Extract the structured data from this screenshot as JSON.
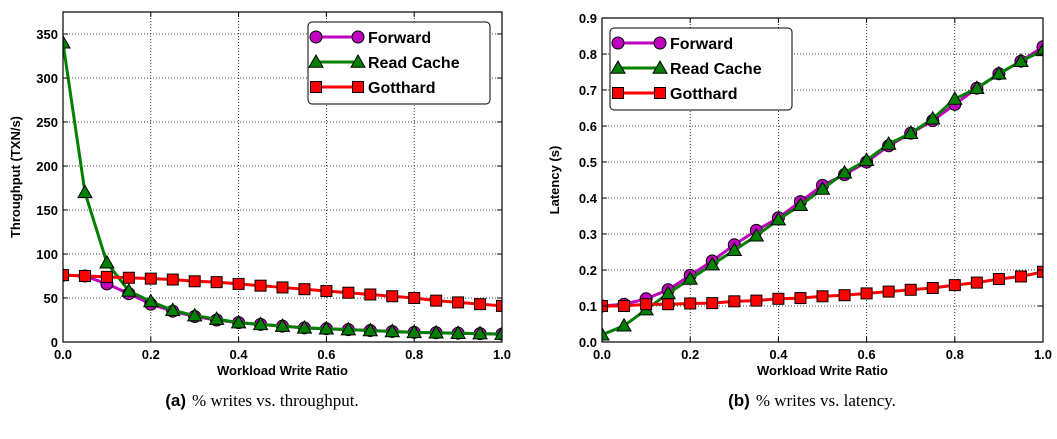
{
  "chart_data": [
    {
      "type": "line",
      "x": [
        0.0,
        0.05,
        0.1,
        0.15,
        0.2,
        0.25,
        0.3,
        0.35,
        0.4,
        0.45,
        0.5,
        0.55,
        0.6,
        0.65,
        0.7,
        0.75,
        0.8,
        0.85,
        0.9,
        0.95,
        1.0
      ],
      "series": [
        {
          "name": "Forward",
          "color": "#bf00bf",
          "marker": "circle",
          "values": [
            76,
            75,
            66,
            55,
            43,
            35,
            29,
            25,
            22,
            20,
            18,
            16,
            15,
            14,
            13,
            12,
            11,
            10.5,
            10,
            9.5,
            9
          ]
        },
        {
          "name": "Read Cache",
          "color": "#008000",
          "marker": "triangle",
          "values": [
            340,
            170,
            90,
            58,
            46,
            36,
            30,
            26,
            22,
            20,
            18,
            16,
            15,
            14,
            13,
            12,
            11,
            10.5,
            10,
            9.5,
            9
          ]
        },
        {
          "name": "Gotthard",
          "color": "#ff0000",
          "marker": "square",
          "values": [
            76,
            75,
            74,
            73,
            72,
            71,
            69,
            68,
            66,
            64,
            62,
            60,
            58,
            56,
            54,
            52,
            50,
            47,
            45,
            43,
            41
          ]
        }
      ],
      "xlabel": "Workload Write Ratio",
      "ylabel": "Throughput (TXN/s)",
      "xlim": [
        0,
        1.0
      ],
      "ylim": [
        0,
        375
      ],
      "xticks": [
        "0.0",
        "0.2",
        "0.4",
        "0.6",
        "0.8",
        "1.0"
      ],
      "yticks": [
        "0",
        "50",
        "100",
        "150",
        "200",
        "250",
        "300",
        "350"
      ],
      "grid": true,
      "legend": "top-right",
      "caption_label": "(a)",
      "caption_text": "% writes vs. throughput."
    },
    {
      "type": "line",
      "x": [
        0.0,
        0.05,
        0.1,
        0.15,
        0.2,
        0.25,
        0.3,
        0.35,
        0.4,
        0.45,
        0.5,
        0.55,
        0.6,
        0.65,
        0.7,
        0.75,
        0.8,
        0.85,
        0.9,
        0.95,
        1.0
      ],
      "series": [
        {
          "name": "Forward",
          "color": "#bf00bf",
          "marker": "circle",
          "values": [
            0.1,
            0.105,
            0.12,
            0.145,
            0.185,
            0.225,
            0.27,
            0.31,
            0.345,
            0.39,
            0.435,
            0.465,
            0.5,
            0.545,
            0.58,
            0.615,
            0.66,
            0.705,
            0.745,
            0.78,
            0.82
          ]
        },
        {
          "name": "Read Cache",
          "color": "#008000",
          "marker": "triangle",
          "values": [
            0.02,
            0.045,
            0.09,
            0.135,
            0.175,
            0.215,
            0.255,
            0.295,
            0.34,
            0.38,
            0.425,
            0.47,
            0.505,
            0.55,
            0.58,
            0.62,
            0.675,
            0.705,
            0.745,
            0.78,
            0.81
          ]
        },
        {
          "name": "Gotthard",
          "color": "#ff0000",
          "marker": "square",
          "values": [
            0.1,
            0.1,
            0.105,
            0.105,
            0.107,
            0.108,
            0.113,
            0.115,
            0.12,
            0.122,
            0.127,
            0.13,
            0.135,
            0.14,
            0.145,
            0.15,
            0.158,
            0.165,
            0.175,
            0.182,
            0.195
          ]
        }
      ],
      "xlabel": "Workload Write Ratio",
      "ylabel": "Latency (s)",
      "xlim": [
        0,
        1.0
      ],
      "ylim": [
        0,
        0.9
      ],
      "xticks": [
        "0.0",
        "0.2",
        "0.4",
        "0.6",
        "0.8",
        "1.0"
      ],
      "yticks": [
        "0.0",
        "0.1",
        "0.2",
        "0.3",
        "0.4",
        "0.5",
        "0.6",
        "0.7",
        "0.8",
        "0.9"
      ],
      "grid": true,
      "legend": "top-left",
      "caption_label": "(b)",
      "caption_text": "% writes vs. latency."
    }
  ]
}
